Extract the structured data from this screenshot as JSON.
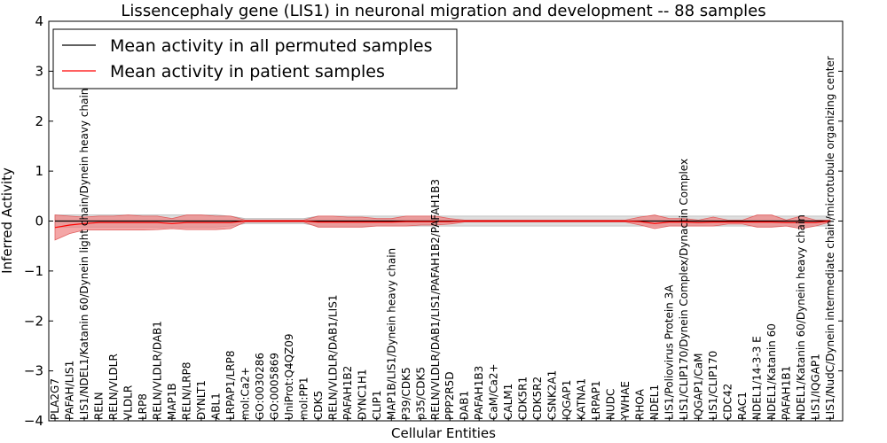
{
  "chart_data": {
    "type": "line",
    "title": "Lissencephaly gene (LIS1) in neuronal migration and development -- 88 samples",
    "xlabel": "Cellular Entities",
    "ylabel": "Inferred Activity",
    "ylim": [
      -4,
      4
    ],
    "yticks": [
      "4",
      "3",
      "2",
      "1",
      "0",
      "−1",
      "−2",
      "−3",
      "−4"
    ],
    "legend_position": "top-left",
    "grid": false,
    "colors": {
      "permuted": "#000000",
      "patient": "#ff0000",
      "permuted_band": "#d0d0d0",
      "patient_band": "#f08080"
    },
    "categories": [
      "PLA2G7",
      "PAFAH/LIS1",
      "LIS1/NDEL1/Katanin 60/Dynein light chain/Dynein heavy chain",
      "RELN",
      "RELN/VLDLR",
      "VLDLR",
      "LRP8",
      "RELN/VLDLR/DAB1",
      "MAP1B",
      "RELN/LRP8",
      "DYNLT1",
      "ABL1",
      "LRPAP1/LRP8",
      "mol:Ca2+",
      "GO:0030286",
      "GO:0005869",
      "UniProt:Q4QZ09",
      "mol:PP1",
      "CDK5",
      "RELN/VLDLR/DAB1/LIS1",
      "PAFAH1B2",
      "DYNC1H1",
      "CLIP1",
      "MAP1B/LIS1/Dynein heavy chain",
      "P39/CDK5",
      "p35/CDK5",
      "RELN/VLDLR/DAB1/LIS1/PAFAH1B2/PAFAH1B3",
      "PPP2R5D",
      "DAB1",
      "PAFAH1B3",
      "CaM/Ca2+",
      "CALM1",
      "CDK5R1",
      "CDK5R2",
      "CSNK2A1",
      "IQGAP1",
      "KATNA1",
      "LRPAP1",
      "NUDC",
      "YWHAE",
      "RHOA",
      "NDEL1",
      "LIS1/Poliovirus Protein 3A",
      "LIS1/CLIP170/Dynein Complex/Dynactin Complex",
      "IQGAP1/CaM",
      "LIS1/CLIP170",
      "CDC42",
      "RAC1",
      "NDEL1/14-3-3 E",
      "NDEL1/Katanin 60",
      "PAFAH1B1",
      "NDEL1/Katanin 60/Dynein heavy chain",
      "LIS1/IQGAP1",
      "LIS1/NudC/Dynein intermediate chain/microtubule organizing center"
    ],
    "series": [
      {
        "name": "Mean activity in all permuted samples",
        "values": [
          0,
          0,
          0,
          0,
          0,
          0,
          0,
          0,
          0,
          0,
          0,
          0,
          0,
          0,
          0,
          0,
          0,
          0,
          0,
          0,
          0,
          0,
          0,
          0,
          0,
          0,
          0,
          0,
          0,
          0,
          0,
          0,
          0,
          0,
          0,
          0,
          0,
          0,
          0,
          0,
          0,
          0,
          0,
          0,
          0,
          0,
          0,
          0,
          0,
          0,
          0,
          0,
          0,
          0
        ],
        "band_upper": [
          0.12,
          0.12,
          0.12,
          0.12,
          0.12,
          0.12,
          0.12,
          0.12,
          0.12,
          0.12,
          0.12,
          0.12,
          0.1,
          0.05,
          0.05,
          0.05,
          0.05,
          0.05,
          0.1,
          0.1,
          0.1,
          0.1,
          0.1,
          0.1,
          0.1,
          0.1,
          0.1,
          0.1,
          0.1,
          0.1,
          0.1,
          0.1,
          0.1,
          0.1,
          0.1,
          0.1,
          0.1,
          0.1,
          0.1,
          0.1,
          0.1,
          0.1,
          0.1,
          0.1,
          0.1,
          0.1,
          0.1,
          0.1,
          0.1,
          0.1,
          0.1,
          0.1,
          0.1,
          0.1
        ],
        "band_lower": [
          -0.12,
          -0.12,
          -0.12,
          -0.12,
          -0.12,
          -0.12,
          -0.12,
          -0.12,
          -0.12,
          -0.12,
          -0.12,
          -0.12,
          -0.1,
          -0.05,
          -0.05,
          -0.05,
          -0.05,
          -0.05,
          -0.1,
          -0.1,
          -0.1,
          -0.1,
          -0.1,
          -0.1,
          -0.1,
          -0.1,
          -0.1,
          -0.1,
          -0.1,
          -0.1,
          -0.1,
          -0.1,
          -0.1,
          -0.1,
          -0.1,
          -0.1,
          -0.1,
          -0.1,
          -0.1,
          -0.1,
          -0.1,
          -0.1,
          -0.1,
          -0.1,
          -0.1,
          -0.1,
          -0.1,
          -0.1,
          -0.1,
          -0.1,
          -0.1,
          -0.1,
          -0.1,
          -0.1
        ]
      },
      {
        "name": "Mean activity in patient samples",
        "values": [
          -0.13,
          -0.08,
          -0.05,
          -0.03,
          -0.03,
          -0.03,
          -0.03,
          -0.03,
          -0.05,
          -0.03,
          -0.03,
          -0.03,
          -0.03,
          0,
          0,
          0,
          0,
          0,
          -0.02,
          -0.02,
          -0.02,
          -0.02,
          -0.02,
          -0.02,
          -0.01,
          -0.01,
          -0.01,
          -0.01,
          0,
          0,
          0,
          0,
          0,
          0,
          0,
          0,
          0,
          0,
          0,
          0,
          -0.01,
          -0.05,
          -0.02,
          -0.02,
          -0.03,
          -0.02,
          -0.02,
          -0.02,
          -0.02,
          -0.02,
          -0.03,
          -0.03,
          -0.03,
          0
        ],
        "band_upper": [
          0.12,
          0.1,
          0.08,
          0.1,
          0.1,
          0.12,
          0.1,
          0.1,
          0.05,
          0.12,
          0.12,
          0.1,
          0.1,
          0.02,
          0.02,
          0.02,
          0.02,
          0.02,
          0.1,
          0.1,
          0.08,
          0.08,
          0.05,
          0.05,
          0.1,
          0.1,
          0.1,
          0.05,
          0.02,
          0.02,
          0.02,
          0.02,
          0.02,
          0.02,
          0.02,
          0.02,
          0.02,
          0.02,
          0.02,
          0.02,
          0.08,
          0.12,
          0.05,
          0.05,
          0.02,
          0.08,
          0.02,
          0.02,
          0.12,
          0.12,
          0.02,
          0.1,
          0.02,
          0.02
        ],
        "band_lower": [
          -0.38,
          -0.25,
          -0.18,
          -0.18,
          -0.18,
          -0.18,
          -0.18,
          -0.17,
          -0.15,
          -0.17,
          -0.17,
          -0.17,
          -0.15,
          -0.02,
          -0.02,
          -0.02,
          -0.02,
          -0.02,
          -0.12,
          -0.12,
          -0.12,
          -0.12,
          -0.1,
          -0.1,
          -0.1,
          -0.08,
          -0.08,
          -0.06,
          -0.02,
          -0.02,
          -0.02,
          -0.02,
          -0.02,
          -0.02,
          -0.02,
          -0.02,
          -0.02,
          -0.02,
          -0.02,
          -0.02,
          -0.08,
          -0.15,
          -0.1,
          -0.1,
          -0.1,
          -0.1,
          -0.06,
          -0.06,
          -0.12,
          -0.12,
          -0.1,
          -0.15,
          -0.1,
          -0.02
        ]
      }
    ]
  }
}
